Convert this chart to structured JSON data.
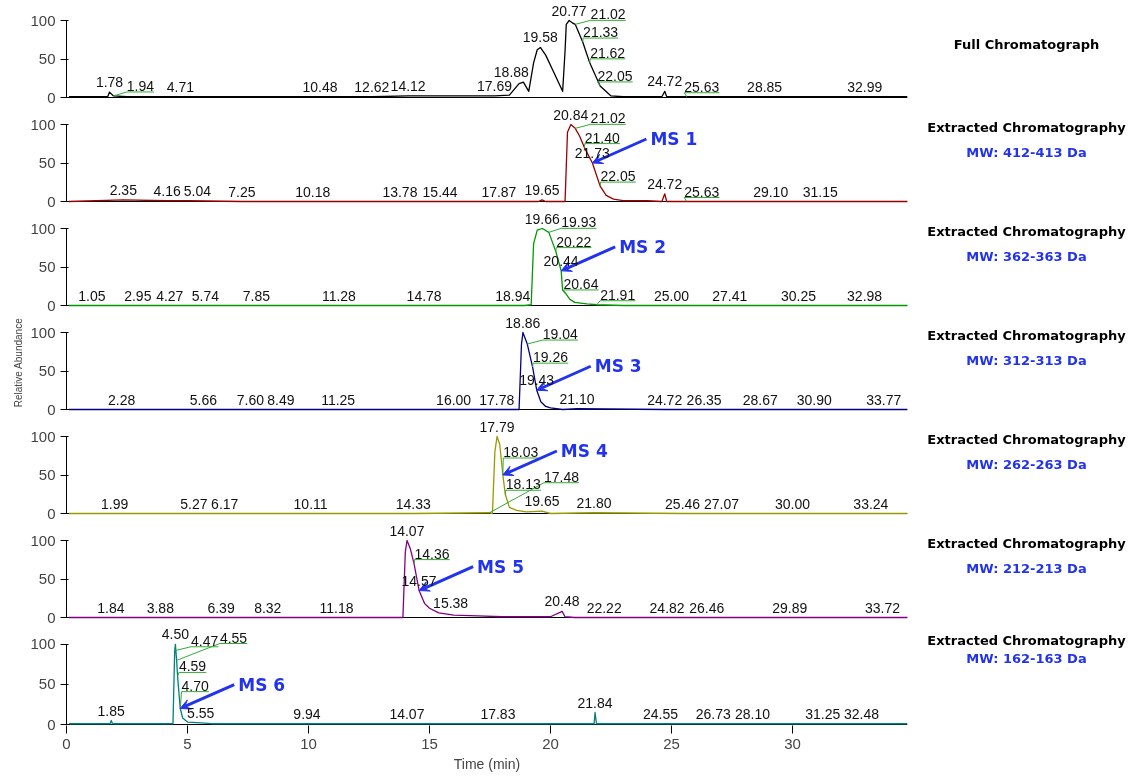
{
  "chart_data": [
    {
      "type": "line",
      "tick_labels": "y",
      "ylim": [
        0,
        100
      ],
      "yticks": [
        0,
        50,
        100
      ],
      "xlim": [
        0,
        34.75
      ],
      "series": [
        {
          "color": "#000000",
          "x": [
            0.1,
            1.7,
            1.78,
            1.94,
            2.5,
            4.71,
            10.48,
            12.62,
            14.12,
            17.69,
            18.3,
            18.7,
            18.88,
            19.1,
            19.3,
            19.45,
            19.58,
            19.8,
            20.1,
            20.5,
            20.6,
            20.65,
            20.77,
            20.9,
            21.02,
            21.33,
            21.62,
            22.05,
            22.5,
            23,
            24.6,
            24.72,
            24.8,
            25.63,
            28.85,
            32.99,
            34.75
          ],
          "values": [
            1,
            1,
            7,
            2,
            1,
            1,
            1,
            1,
            2,
            2,
            3,
            18,
            20,
            8,
            45,
            62,
            65,
            55,
            35,
            8,
            60,
            95,
            100,
            97,
            95,
            72,
            45,
            15,
            2,
            1,
            1,
            8,
            1,
            1,
            1,
            1,
            1
          ]
        }
      ],
      "annotations": [
        {
          "text": "1.78",
          "x": 1.78,
          "y": 7
        },
        {
          "text": "1.94",
          "x": 1.94,
          "y": 2
        },
        {
          "text": "4.71",
          "x": 4.71,
          "y": 1
        },
        {
          "text": "10.48",
          "x": 10.48,
          "y": 1
        },
        {
          "text": "12.62",
          "x": 12.62,
          "y": 1
        },
        {
          "text": "14.12",
          "x": 14.12,
          "y": 2
        },
        {
          "text": "17.69",
          "x": 17.69,
          "y": 2
        },
        {
          "text": "18.88",
          "x": 18.88,
          "y": 20
        },
        {
          "text": "19.58",
          "x": 19.58,
          "y": 65
        },
        {
          "text": "20.77",
          "x": 20.77,
          "y": 100
        },
        {
          "text": "21.02",
          "x": 21.02,
          "y": 95
        },
        {
          "text": "21.33",
          "x": 21.33,
          "y": 72
        },
        {
          "text": "21.62",
          "x": 21.62,
          "y": 45
        },
        {
          "text": "22.05",
          "x": 22.05,
          "y": 15
        },
        {
          "text": "24.72",
          "x": 24.72,
          "y": 8
        },
        {
          "text": "25.63",
          "x": 25.63,
          "y": 1
        },
        {
          "text": "28.85",
          "x": 28.85,
          "y": 1
        },
        {
          "text": "32.99",
          "x": 32.99,
          "y": 1
        }
      ]
    },
    {
      "type": "other",
      "title": "Full Chromatograph"
    },
    {
      "type": "line",
      "tick_labels": "y",
      "ylim": [
        0,
        100
      ],
      "yticks": [
        0,
        50,
        100
      ],
      "xlim": [
        0,
        34.75
      ],
      "series": [
        {
          "name": "MS 1",
          "color": "#990000",
          "x": [
            0.1,
            2.35,
            4.16,
            5.04,
            7.25,
            10.18,
            13.78,
            15.44,
            17.87,
            19.5,
            19.65,
            19.8,
            20.6,
            20.7,
            20.84,
            21.02,
            21.2,
            21.4,
            21.73,
            22.05,
            22.3,
            22.6,
            23.0,
            24.0,
            24.6,
            24.72,
            24.8,
            25.63,
            29.1,
            31.15,
            34.75
          ],
          "values": [
            0,
            2,
            1,
            1,
            0,
            0,
            0,
            0,
            0,
            0,
            2,
            0,
            0,
            90,
            100,
            95,
            85,
            70,
            50,
            20,
            8,
            3,
            1,
            1,
            0,
            10,
            0,
            0,
            0,
            0,
            0
          ]
        }
      ],
      "annotations": [
        {
          "text": "2.35",
          "x": 2.35,
          "y": 2
        },
        {
          "text": "4.16",
          "x": 4.16,
          "y": 1
        },
        {
          "text": "5.04",
          "x": 5.04,
          "y": 1
        },
        {
          "text": "7.25",
          "x": 7.25,
          "y": 0
        },
        {
          "text": "10.18",
          "x": 10.18,
          "y": 0
        },
        {
          "text": "13.78",
          "x": 13.78,
          "y": 0
        },
        {
          "text": "15.44",
          "x": 15.44,
          "y": 0
        },
        {
          "text": "17.87",
          "x": 17.87,
          "y": 0
        },
        {
          "text": "19.65",
          "x": 19.65,
          "y": 2
        },
        {
          "text": "20.84",
          "x": 20.84,
          "y": 100
        },
        {
          "text": "21.02",
          "x": 21.02,
          "y": 95
        },
        {
          "text": "21.40",
          "x": 21.4,
          "y": 70
        },
        {
          "text": "21.73",
          "x": 21.73,
          "y": 50
        },
        {
          "text": "22.05",
          "x": 22.05,
          "y": 20
        },
        {
          "text": "24.72",
          "x": 24.72,
          "y": 10
        },
        {
          "text": "25.63",
          "x": 25.63,
          "y": 0
        },
        {
          "text": "29.10",
          "x": 29.1,
          "y": 0
        },
        {
          "text": "31.15",
          "x": 31.15,
          "y": 0
        }
      ]
    },
    {
      "type": "other",
      "title": "Extracted Chromatography",
      "subtitle": "MW: 412-413 Da"
    },
    {
      "type": "line",
      "tick_labels": "y",
      "ylim": [
        0,
        100
      ],
      "yticks": [
        0,
        50,
        100
      ],
      "xlim": [
        0,
        34.75
      ],
      "series": [
        {
          "name": "MS 2",
          "color": "#009900",
          "x": [
            0.1,
            1.05,
            2.95,
            4.27,
            5.74,
            7.85,
            11.28,
            14.78,
            18.94,
            19.2,
            19.3,
            19.45,
            19.66,
            19.93,
            20.22,
            20.44,
            20.5,
            20.64,
            20.8,
            21.0,
            21.5,
            21.91,
            23,
            25.0,
            27.41,
            30.25,
            32.98,
            34.75
          ],
          "values": [
            0,
            0,
            0,
            0,
            0,
            0,
            0,
            0,
            0,
            1,
            80,
            98,
            100,
            95,
            70,
            45,
            20,
            15,
            8,
            4,
            2,
            1,
            0,
            0,
            0,
            0,
            0,
            0
          ]
        }
      ],
      "annotations": [
        {
          "text": "1.05",
          "x": 1.05,
          "y": 0
        },
        {
          "text": "2.95",
          "x": 2.95,
          "y": 0
        },
        {
          "text": "4.27",
          "x": 4.27,
          "y": 0
        },
        {
          "text": "5.74",
          "x": 5.74,
          "y": 0
        },
        {
          "text": "7.85",
          "x": 7.85,
          "y": 0
        },
        {
          "text": "11.28",
          "x": 11.28,
          "y": 0
        },
        {
          "text": "14.78",
          "x": 14.78,
          "y": 0
        },
        {
          "text": "18.94",
          "x": 18.94,
          "y": 0
        },
        {
          "text": "19.66",
          "x": 19.66,
          "y": 100
        },
        {
          "text": "19.93",
          "x": 19.93,
          "y": 95
        },
        {
          "text": "20.22",
          "x": 20.22,
          "y": 70
        },
        {
          "text": "20.44",
          "x": 20.44,
          "y": 45
        },
        {
          "text": "20.64",
          "x": 20.64,
          "y": 15
        },
        {
          "text": "21.91",
          "x": 21.91,
          "y": 1
        },
        {
          "text": "25.00",
          "x": 25.0,
          "y": 0
        },
        {
          "text": "27.41",
          "x": 27.41,
          "y": 0
        },
        {
          "text": "30.25",
          "x": 30.25,
          "y": 0
        },
        {
          "text": "32.98",
          "x": 32.98,
          "y": 0
        }
      ]
    },
    {
      "type": "other",
      "title": "Extracted Chromatography",
      "subtitle": "MW: 362-363 Da"
    },
    {
      "type": "line",
      "ylabel": "Relative Abundance",
      "tick_labels": "y",
      "ylim": [
        0,
        100
      ],
      "yticks": [
        0,
        50,
        100
      ],
      "xlim": [
        0,
        34.75
      ],
      "series": [
        {
          "name": "MS 3",
          "color": "#000080",
          "x": [
            0.1,
            2.28,
            5.66,
            7.6,
            8.49,
            11.25,
            16.0,
            17.78,
            18.7,
            18.8,
            18.86,
            19.04,
            19.26,
            19.43,
            19.6,
            19.8,
            20.0,
            20.5,
            21.1,
            24.72,
            26.35,
            28.67,
            30.9,
            33.77,
            34.75
          ],
          "values": [
            0,
            0,
            0,
            0,
            0,
            0,
            0,
            0,
            0,
            85,
            100,
            85,
            55,
            25,
            10,
            4,
            2,
            0,
            1,
            0,
            0,
            0,
            0,
            0,
            0
          ]
        }
      ],
      "annotations": [
        {
          "text": "2.28",
          "x": 2.28,
          "y": 0
        },
        {
          "text": "5.66",
          "x": 5.66,
          "y": 0
        },
        {
          "text": "7.60",
          "x": 7.6,
          "y": 0
        },
        {
          "text": "8.49",
          "x": 8.49,
          "y": 0
        },
        {
          "text": "11.25",
          "x": 11.25,
          "y": 0
        },
        {
          "text": "16.00",
          "x": 16.0,
          "y": 0
        },
        {
          "text": "17.78",
          "x": 17.78,
          "y": 0
        },
        {
          "text": "18.86",
          "x": 18.86,
          "y": 100
        },
        {
          "text": "19.04",
          "x": 19.04,
          "y": 85
        },
        {
          "text": "19.26",
          "x": 19.26,
          "y": 55
        },
        {
          "text": "19.43",
          "x": 19.43,
          "y": 25
        },
        {
          "text": "21.10",
          "x": 21.1,
          "y": 1
        },
        {
          "text": "24.72",
          "x": 24.72,
          "y": 0
        },
        {
          "text": "26.35",
          "x": 26.35,
          "y": 0
        },
        {
          "text": "28.67",
          "x": 28.67,
          "y": 0
        },
        {
          "text": "30.90",
          "x": 30.9,
          "y": 0
        },
        {
          "text": "33.77",
          "x": 33.77,
          "y": 0
        }
      ]
    },
    {
      "type": "other",
      "title": "Extracted Chromatography",
      "subtitle": "MW: 312-313 Da"
    },
    {
      "type": "line",
      "tick_labels": "y",
      "ylim": [
        0,
        100
      ],
      "yticks": [
        0,
        50,
        100
      ],
      "xlim": [
        0,
        34.75
      ],
      "series": [
        {
          "name": "MS 4",
          "color": "#999900",
          "x": [
            0.1,
            1.99,
            5.27,
            6.17,
            10.11,
            14.33,
            17.48,
            17.6,
            17.7,
            17.79,
            17.9,
            18.03,
            18.13,
            18.3,
            18.6,
            19.0,
            19.65,
            20,
            21.8,
            25.46,
            27.07,
            30.0,
            33.24,
            34.75
          ],
          "values": [
            0,
            0,
            0,
            0,
            0,
            0,
            1,
            0,
            80,
            100,
            90,
            50,
            25,
            8,
            4,
            2,
            3,
            0,
            1,
            0,
            0,
            0,
            0,
            0
          ]
        }
      ],
      "annotations": [
        {
          "text": "1.99",
          "x": 1.99,
          "y": 0
        },
        {
          "text": "5.27",
          "x": 5.27,
          "y": 0
        },
        {
          "text": "6.17",
          "x": 6.17,
          "y": 0
        },
        {
          "text": "10.11",
          "x": 10.11,
          "y": 0
        },
        {
          "text": "14.33",
          "x": 14.33,
          "y": 0
        },
        {
          "text": "17.48",
          "x": 17.48,
          "y": 1
        },
        {
          "text": "17.79",
          "x": 17.79,
          "y": 100
        },
        {
          "text": "18.03",
          "x": 18.03,
          "y": 50
        },
        {
          "text": "18.13",
          "x": 18.13,
          "y": 25
        },
        {
          "text": "19.65",
          "x": 19.65,
          "y": 3
        },
        {
          "text": "21.80",
          "x": 21.8,
          "y": 1
        },
        {
          "text": "25.46",
          "x": 25.46,
          "y": 0
        },
        {
          "text": "27.07",
          "x": 27.07,
          "y": 0
        },
        {
          "text": "30.00",
          "x": 30.0,
          "y": 0
        },
        {
          "text": "33.24",
          "x": 33.24,
          "y": 0
        }
      ]
    },
    {
      "type": "other",
      "title": "Extracted Chromatography",
      "subtitle": "MW: 262-263 Da"
    },
    {
      "type": "line",
      "tick_labels": "y",
      "ylim": [
        0,
        100
      ],
      "yticks": [
        0,
        50,
        100
      ],
      "xlim": [
        0,
        34.75
      ],
      "series": [
        {
          "name": "MS 5",
          "color": "#800080",
          "x": [
            0.1,
            1.84,
            3.88,
            6.39,
            8.32,
            11.18,
            13.9,
            14.0,
            14.07,
            14.2,
            14.36,
            14.57,
            14.8,
            15.0,
            15.38,
            16,
            17,
            18,
            19,
            20,
            20.48,
            20.6,
            21,
            22.22,
            24.82,
            26.46,
            29.89,
            33.72,
            34.75
          ],
          "values": [
            0,
            0,
            0,
            0,
            0,
            0,
            0,
            85,
            100,
            90,
            70,
            35,
            18,
            12,
            6,
            3,
            2,
            1,
            1,
            1,
            8,
            1,
            0,
            0,
            0,
            0,
            0,
            0,
            0
          ]
        }
      ],
      "annotations": [
        {
          "text": "1.84",
          "x": 1.84,
          "y": 0
        },
        {
          "text": "3.88",
          "x": 3.88,
          "y": 0
        },
        {
          "text": "6.39",
          "x": 6.39,
          "y": 0
        },
        {
          "text": "8.32",
          "x": 8.32,
          "y": 0
        },
        {
          "text": "11.18",
          "x": 11.18,
          "y": 0
        },
        {
          "text": "14.07",
          "x": 14.07,
          "y": 100
        },
        {
          "text": "14.36",
          "x": 14.36,
          "y": 70
        },
        {
          "text": "14.57",
          "x": 14.57,
          "y": 35
        },
        {
          "text": "15.38",
          "x": 15.38,
          "y": 6
        },
        {
          "text": "20.48",
          "x": 20.48,
          "y": 8
        },
        {
          "text": "22.22",
          "x": 22.22,
          "y": 0
        },
        {
          "text": "24.82",
          "x": 24.82,
          "y": 0
        },
        {
          "text": "26.46",
          "x": 26.46,
          "y": 0
        },
        {
          "text": "29.89",
          "x": 29.89,
          "y": 0
        },
        {
          "text": "33.72",
          "x": 33.72,
          "y": 0
        }
      ]
    },
    {
      "type": "other",
      "title": "Extracted Chromatography",
      "subtitle": "MW: 212-213 Da"
    },
    {
      "type": "line",
      "xlabel": "Time (min)",
      "xlim": [
        0,
        34.75
      ],
      "xticks": [
        0,
        5,
        10,
        15,
        20,
        25,
        30
      ],
      "ylim": [
        0,
        100
      ],
      "yticks": [
        0,
        50,
        100
      ],
      "series": [
        {
          "name": "MS 6",
          "color": "#008080",
          "x": [
            0.1,
            1.8,
            1.85,
            1.9,
            4.4,
            4.47,
            4.5,
            4.55,
            4.59,
            4.7,
            4.8,
            5.0,
            5.55,
            6,
            9.94,
            14.07,
            17.83,
            21.8,
            21.84,
            21.9,
            24.55,
            26.73,
            28.1,
            31.25,
            32.48,
            34.75
          ],
          "values": [
            1,
            1,
            5,
            1,
            1,
            92,
            100,
            80,
            60,
            20,
            8,
            3,
            2,
            1,
            1,
            1,
            1,
            1,
            15,
            1,
            1,
            1,
            1,
            1,
            1,
            1
          ]
        }
      ],
      "annotations": [
        {
          "text": "1.85",
          "x": 1.85,
          "y": 5
        },
        {
          "text": "4.47",
          "x": 4.47,
          "y": 92
        },
        {
          "text": "4.50",
          "x": 4.5,
          "y": 100
        },
        {
          "text": "4.55",
          "x": 4.55,
          "y": 80
        },
        {
          "text": "4.59",
          "x": 4.59,
          "y": 60
        },
        {
          "text": "4.70",
          "x": 4.7,
          "y": 20
        },
        {
          "text": "5.55",
          "x": 5.55,
          "y": 2
        },
        {
          "text": "9.94",
          "x": 9.94,
          "y": 1
        },
        {
          "text": "14.07",
          "x": 14.07,
          "y": 1
        },
        {
          "text": "17.83",
          "x": 17.83,
          "y": 1
        },
        {
          "text": "21.84",
          "x": 21.84,
          "y": 15
        },
        {
          "text": "24.55",
          "x": 24.55,
          "y": 1
        },
        {
          "text": "26.73",
          "x": 26.73,
          "y": 1
        },
        {
          "text": "28.10",
          "x": 28.1,
          "y": 1
        },
        {
          "text": "31.25",
          "x": 31.25,
          "y": 1
        },
        {
          "text": "32.48",
          "x": 32.48,
          "y": 1
        }
      ]
    },
    {
      "type": "other",
      "title": "Extracted Chromatography",
      "subtitle": "MW: 162-163 Da"
    }
  ]
}
